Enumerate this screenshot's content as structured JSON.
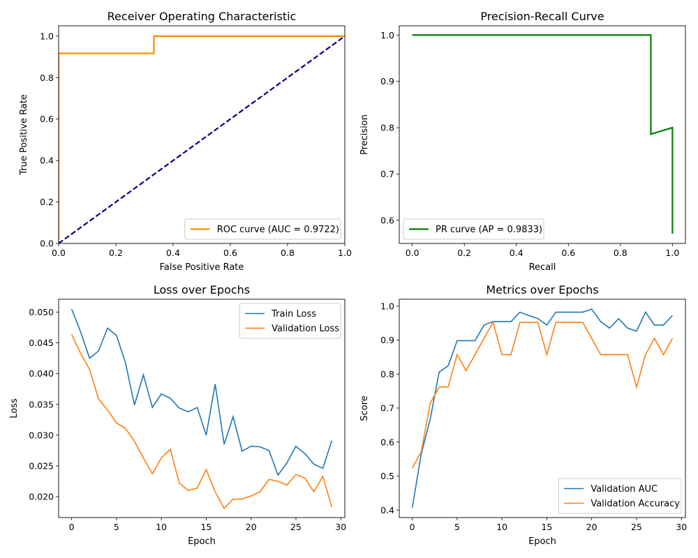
{
  "chart_data": [
    {
      "type": "line",
      "title": "Receiver Operating Characteristic",
      "xlabel": "False Positive Rate",
      "ylabel": "True Positive Rate",
      "xlim": [
        0,
        1
      ],
      "ylim": [
        0,
        1.05
      ],
      "xticks": [
        "0.0",
        "0.2",
        "0.4",
        "0.6",
        "0.8",
        "1.0"
      ],
      "yticks": [
        "0.0",
        "0.2",
        "0.4",
        "0.6",
        "0.8",
        "1.0"
      ],
      "legend": "lower-right",
      "series": [
        {
          "name": "ROC curve (AUC = 0.9722)",
          "color": "#ff8c00",
          "dash": "solid",
          "legend": true,
          "x": [
            0,
            0,
            0.333,
            0.333,
            1.0
          ],
          "y": [
            0,
            0.917,
            0.917,
            1.0,
            1.0
          ]
        },
        {
          "name": "",
          "color": "#000080",
          "dash": "dashed",
          "legend": false,
          "x": [
            0,
            1
          ],
          "y": [
            0,
            1
          ]
        }
      ]
    },
    {
      "type": "line",
      "title": "Precision-Recall Curve",
      "xlabel": "Recall",
      "ylabel": "Precision",
      "xlim": [
        -0.05,
        1.05
      ],
      "ylim": [
        0.55,
        1.02
      ],
      "xticks": [
        "0.0",
        "0.2",
        "0.4",
        "0.6",
        "0.8",
        "1.0"
      ],
      "yticks": [
        "0.6",
        "0.7",
        "0.8",
        "0.9",
        "1.0"
      ],
      "legend": "lower-left",
      "series": [
        {
          "name": "PR curve (AP = 0.9833)",
          "color": "#008000",
          "dash": "solid",
          "legend": true,
          "x": [
            0,
            0.917,
            0.917,
            1.0,
            1.0
          ],
          "y": [
            1.0,
            1.0,
            0.786,
            0.8,
            0.571
          ]
        }
      ]
    },
    {
      "type": "line",
      "title": "Loss over Epochs",
      "xlabel": "Epoch",
      "ylabel": "Loss",
      "xlim": [
        -1.45,
        30.45
      ],
      "ylim": [
        0.0166,
        0.0521
      ],
      "xticks": [
        "0",
        "5",
        "10",
        "15",
        "20",
        "25",
        "30"
      ],
      "yticks": [
        "0.020",
        "0.025",
        "0.030",
        "0.035",
        "0.040",
        "0.045",
        "0.050"
      ],
      "legend": "top-right",
      "series": [
        {
          "name": "Train Loss",
          "color": "#1f77b4",
          "dash": "solid",
          "legend": true,
          "x": [
            0,
            1,
            2,
            3,
            4,
            5,
            6,
            7,
            8,
            9,
            10,
            11,
            12,
            13,
            14,
            15,
            16,
            17,
            18,
            19,
            20,
            21,
            22,
            23,
            24,
            25,
            26,
            27,
            28,
            29
          ],
          "y": [
            0.0505,
            0.0468,
            0.0425,
            0.0437,
            0.0474,
            0.0462,
            0.0418,
            0.0349,
            0.0398,
            0.0345,
            0.0367,
            0.036,
            0.0344,
            0.0338,
            0.0345,
            0.03,
            0.0383,
            0.0285,
            0.033,
            0.0274,
            0.0282,
            0.0281,
            0.0275,
            0.0235,
            0.0255,
            0.0282,
            0.027,
            0.0253,
            0.0246,
            0.0291
          ]
        },
        {
          "name": "Validation Loss",
          "color": "#ff7f0e",
          "dash": "solid",
          "legend": true,
          "x": [
            0,
            1,
            2,
            3,
            4,
            5,
            6,
            7,
            8,
            9,
            10,
            11,
            12,
            13,
            14,
            15,
            16,
            17,
            18,
            19,
            20,
            21,
            22,
            23,
            24,
            25,
            26,
            27,
            28,
            29
          ],
          "y": [
            0.0464,
            0.0433,
            0.0407,
            0.0359,
            0.0341,
            0.032,
            0.0311,
            0.029,
            0.0263,
            0.0237,
            0.0263,
            0.0277,
            0.0222,
            0.021,
            0.0214,
            0.0244,
            0.0208,
            0.0181,
            0.0196,
            0.0196,
            0.0201,
            0.0208,
            0.0228,
            0.0225,
            0.0219,
            0.0236,
            0.023,
            0.0208,
            0.0233,
            0.0183
          ]
        }
      ]
    },
    {
      "type": "line",
      "title": "Metrics over Epochs",
      "xlabel": "Epoch",
      "ylabel": "Score",
      "xlim": [
        -1.45,
        30.45
      ],
      "ylim": [
        0.378,
        1.02
      ],
      "xticks": [
        "0",
        "5",
        "10",
        "15",
        "20",
        "25",
        "30"
      ],
      "yticks": [
        "0.4",
        "0.5",
        "0.6",
        "0.7",
        "0.8",
        "0.9",
        "1.0"
      ],
      "legend": "lower-right",
      "series": [
        {
          "name": "Validation AUC",
          "color": "#1f77b4",
          "dash": "solid",
          "legend": true,
          "x": [
            0,
            1,
            2,
            3,
            4,
            5,
            6,
            7,
            8,
            9,
            10,
            11,
            12,
            13,
            14,
            15,
            16,
            17,
            18,
            19,
            20,
            21,
            22,
            23,
            24,
            25,
            26,
            27,
            28,
            29
          ],
          "y": [
            0.407,
            0.565,
            0.667,
            0.806,
            0.824,
            0.898,
            0.898,
            0.898,
            0.944,
            0.954,
            0.954,
            0.954,
            0.982,
            0.972,
            0.963,
            0.944,
            0.982,
            0.982,
            0.982,
            0.982,
            0.991,
            0.954,
            0.935,
            0.963,
            0.935,
            0.926,
            0.982,
            0.944,
            0.944,
            0.972
          ]
        },
        {
          "name": "Validation Accuracy",
          "color": "#ff7f0e",
          "dash": "solid",
          "legend": true,
          "x": [
            0,
            1,
            2,
            3,
            4,
            5,
            6,
            7,
            8,
            9,
            10,
            11,
            12,
            13,
            14,
            15,
            16,
            17,
            18,
            19,
            20,
            21,
            22,
            23,
            24,
            25,
            26,
            27,
            28,
            29
          ],
          "y": [
            0.524,
            0.571,
            0.714,
            0.762,
            0.762,
            0.857,
            0.81,
            0.857,
            0.905,
            0.952,
            0.857,
            0.857,
            0.952,
            0.952,
            0.952,
            0.857,
            0.952,
            0.952,
            0.952,
            0.952,
            0.905,
            0.857,
            0.857,
            0.857,
            0.857,
            0.762,
            0.857,
            0.905,
            0.857,
            0.905
          ]
        }
      ]
    }
  ]
}
